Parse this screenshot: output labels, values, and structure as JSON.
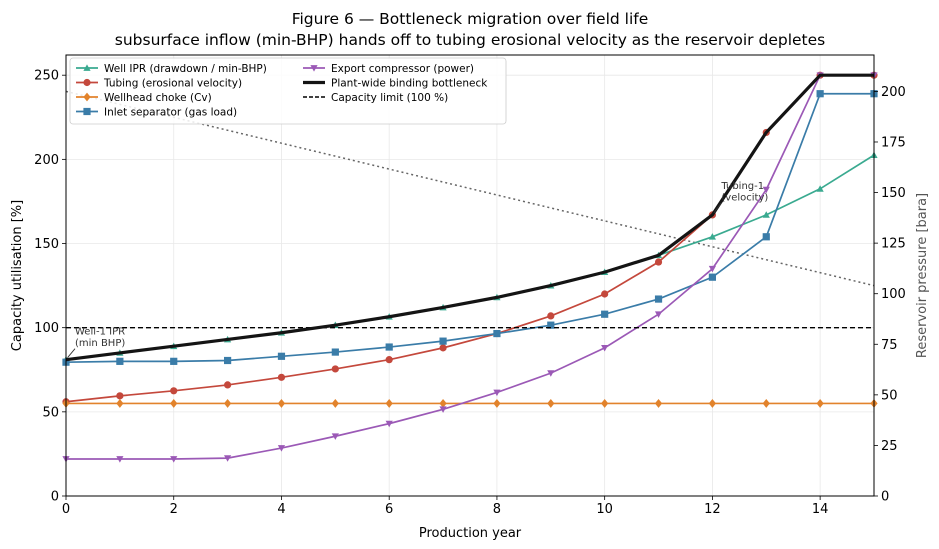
{
  "chart_data": {
    "type": "line",
    "title": "Figure 6 — Bottleneck migration over field life",
    "subtitle": "subsurface inflow (min-BHP) hands off to tubing erosional velocity as the reservoir depletes",
    "xlabel": "Production year",
    "ylabel": "Capacity utilisation [%]",
    "y2label": "Reservoir pressure [bara]",
    "xlim": [
      0,
      15
    ],
    "ylim": [
      0,
      262
    ],
    "y2lim": [
      0,
      218
    ],
    "xticks": [
      0,
      2,
      4,
      6,
      8,
      10,
      12,
      14
    ],
    "yticks": [
      0,
      50,
      100,
      150,
      200,
      250
    ],
    "y2ticks": [
      0,
      25,
      50,
      75,
      100,
      125,
      150,
      175,
      200
    ],
    "grid": true,
    "legend_position": "top-left",
    "x": [
      0,
      1,
      2,
      3,
      4,
      5,
      6,
      7,
      8,
      9,
      10,
      11,
      12,
      13,
      14,
      15
    ],
    "series": [
      {
        "name": "Well IPR (drawdown / min-BHP)",
        "color": "#3aaa90",
        "marker": "triangle-up",
        "values": [
          81,
          85,
          89,
          93,
          97,
          101.5,
          106.5,
          112,
          118,
          125,
          133,
          143,
          154,
          167,
          182.5,
          202.5
        ]
      },
      {
        "name": "Tubing (erosional velocity)",
        "color": "#c4483c",
        "marker": "circle",
        "values": [
          56,
          59.5,
          62.5,
          66,
          70.5,
          75.5,
          81,
          88,
          96.5,
          107,
          120,
          139,
          167,
          216,
          250,
          250
        ]
      },
      {
        "name": "Wellhead choke (Cv)",
        "color": "#e2832c",
        "marker": "diamond",
        "values": [
          55,
          55,
          55,
          55,
          55,
          55,
          55,
          55,
          55,
          55,
          55,
          55,
          55,
          55,
          55,
          55
        ]
      },
      {
        "name": "Inlet separator (gas load)",
        "color": "#3a7ca8",
        "marker": "square",
        "values": [
          79.5,
          80,
          80,
          80.5,
          83,
          85.5,
          88.5,
          92,
          96.5,
          101.5,
          108,
          117,
          130,
          154,
          239,
          239
        ]
      },
      {
        "name": "Export compressor (power)",
        "color": "#9b59b6",
        "marker": "triangle-down",
        "values": [
          22,
          22,
          22,
          22.5,
          28.5,
          35.5,
          43,
          51.5,
          61.5,
          73,
          88,
          108,
          135,
          182,
          250,
          250
        ]
      },
      {
        "name": "Plant-wide binding bottleneck",
        "color": "#141414",
        "marker": "none",
        "values": [
          81,
          85,
          89,
          93,
          97,
          101.5,
          106.5,
          112,
          118,
          125,
          133,
          143,
          167,
          216,
          250,
          250
        ]
      },
      {
        "name": "Capacity limit (100 %)",
        "color": "#000000",
        "style": "dashed",
        "values": [
          100,
          100,
          100,
          100,
          100,
          100,
          100,
          100,
          100,
          100,
          100,
          100,
          100,
          100,
          100,
          100
        ]
      }
    ],
    "reservoir_pressure": {
      "axis": "right",
      "color": "#666666",
      "style": "dotted",
      "x": [
        0,
        15
      ],
      "values": [
        200,
        104
      ]
    },
    "annotations": [
      {
        "text_lines": [
          "Well-1 IPR",
          "(min BHP)"
        ],
        "x": 0,
        "y": 81
      },
      {
        "text_lines": [
          "Tubing-1",
          "(velocity)"
        ],
        "x": 12,
        "y": 167
      }
    ]
  }
}
